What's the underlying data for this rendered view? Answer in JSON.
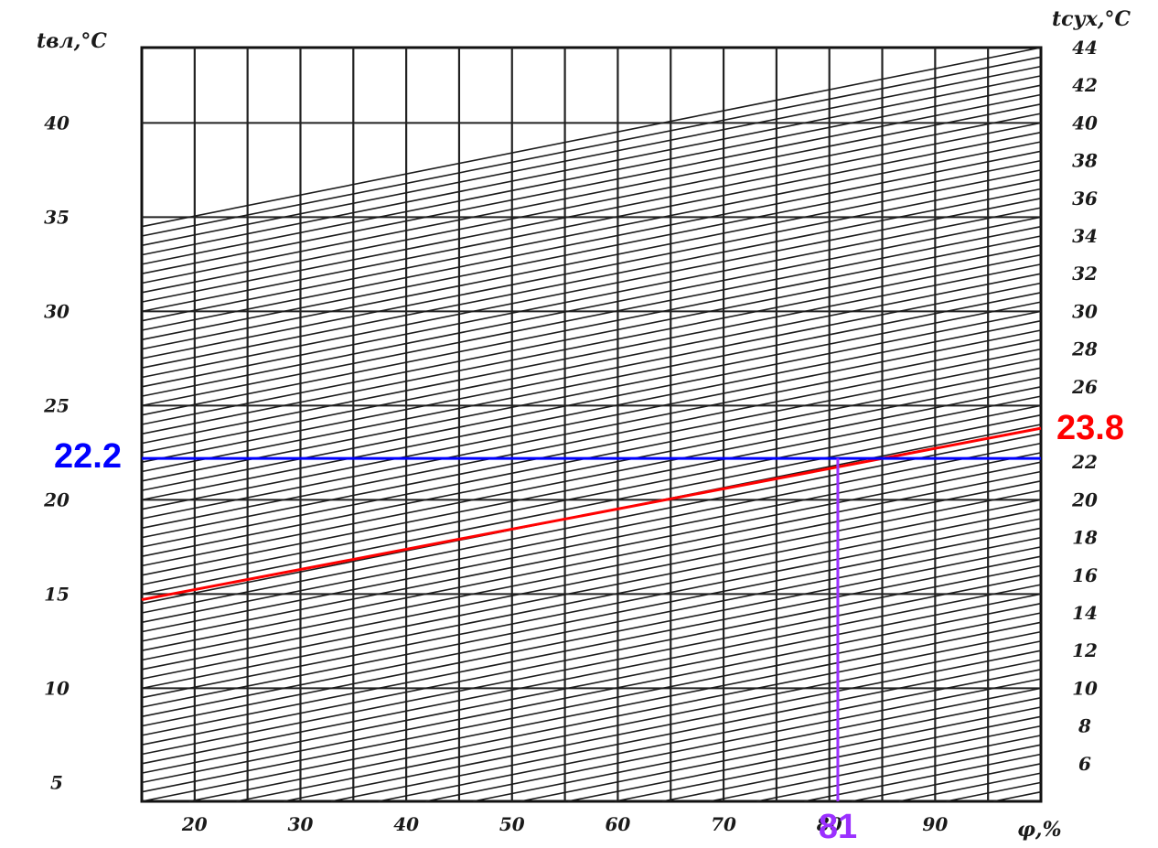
{
  "chart_data": {
    "type": "line",
    "title": "",
    "xlabel": "φ,%",
    "ylabel_left": "tвл,°C",
    "ylabel_right": "tсух,°C",
    "x_range": [
      15,
      100
    ],
    "x_ticks": [
      20,
      30,
      40,
      50,
      60,
      70,
      80,
      90
    ],
    "y_left_range": [
      4,
      44
    ],
    "y_left_ticks": [
      5,
      10,
      15,
      20,
      25,
      30,
      35,
      40
    ],
    "y_right_ticks": [
      6,
      8,
      10,
      12,
      14,
      16,
      18,
      20,
      22,
      26,
      28,
      30,
      32,
      34,
      36,
      38,
      40,
      42,
      44
    ],
    "grid": true,
    "isotherm_family": {
      "description": "lines of constant dry-bulb temperature, every 0.5 °C",
      "t_dry_min": 4,
      "t_dry_max": 44,
      "step": 0.5,
      "t_wet_at_phi15_offset": -9.5,
      "t_wet_at_phi100_offset": 0
    },
    "series": [
      {
        "name": "",
        "color": "#ff0000",
        "x": [
          15,
          100
        ],
        "y": [
          14.7,
          23.8
        ]
      },
      {
        "name": "",
        "color": "#0000ff",
        "x": [
          15,
          100
        ],
        "y": [
          22.2,
          22.2
        ]
      },
      {
        "name": "",
        "color": "#9b30ff",
        "x": [
          80.8,
          80.8
        ],
        "y": [
          4,
          22.2
        ]
      }
    ],
    "annotations": [
      {
        "text": "22.2",
        "color": "#0000ff",
        "anchor": "left-axis",
        "value": 22.2
      },
      {
        "text": "23.8",
        "color": "#ff0000",
        "anchor": "right-axis",
        "value": 23.8
      },
      {
        "text": "81",
        "color": "#9b30ff",
        "anchor": "x-axis",
        "value": 80.8
      }
    ]
  }
}
